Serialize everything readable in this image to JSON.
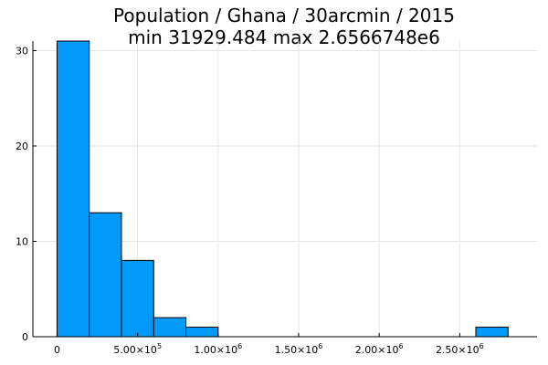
{
  "chart_data": {
    "type": "bar",
    "title_lines": [
      "Population / Ghana / 30arcmin / 2015",
      "min 31929.484  max 2.6566748e6"
    ],
    "bin_edges_x": [
      0,
      200000,
      400000,
      600000,
      800000,
      1000000,
      1200000,
      1400000,
      1600000,
      1800000,
      2000000,
      2200000,
      2400000,
      2600000,
      2800000
    ],
    "counts": [
      31,
      13,
      8,
      2,
      1,
      0,
      0,
      0,
      0,
      0,
      0,
      0,
      0,
      1
    ],
    "xlim": [
      -150000,
      2980000
    ],
    "ylim": [
      0,
      31
    ],
    "x_ticks": [
      {
        "value": 0,
        "mantissa": "0",
        "exp": ""
      },
      {
        "value": 500000,
        "mantissa": "5.00×10",
        "exp": "5"
      },
      {
        "value": 1000000,
        "mantissa": "1.00×10",
        "exp": "6"
      },
      {
        "value": 1500000,
        "mantissa": "1.50×10",
        "exp": "6"
      },
      {
        "value": 2000000,
        "mantissa": "2.00×10",
        "exp": "6"
      },
      {
        "value": 2500000,
        "mantissa": "2.50×10",
        "exp": "6"
      }
    ],
    "y_ticks": [
      {
        "value": 0,
        "label": "0"
      },
      {
        "value": 10,
        "label": "10"
      },
      {
        "value": 20,
        "label": "20"
      },
      {
        "value": 30,
        "label": "30"
      }
    ],
    "grid": true,
    "legend": "none",
    "colors": {
      "bar_fill": "#009af9",
      "bar_edge": "#000000",
      "grid": "#e6e6e6"
    }
  }
}
